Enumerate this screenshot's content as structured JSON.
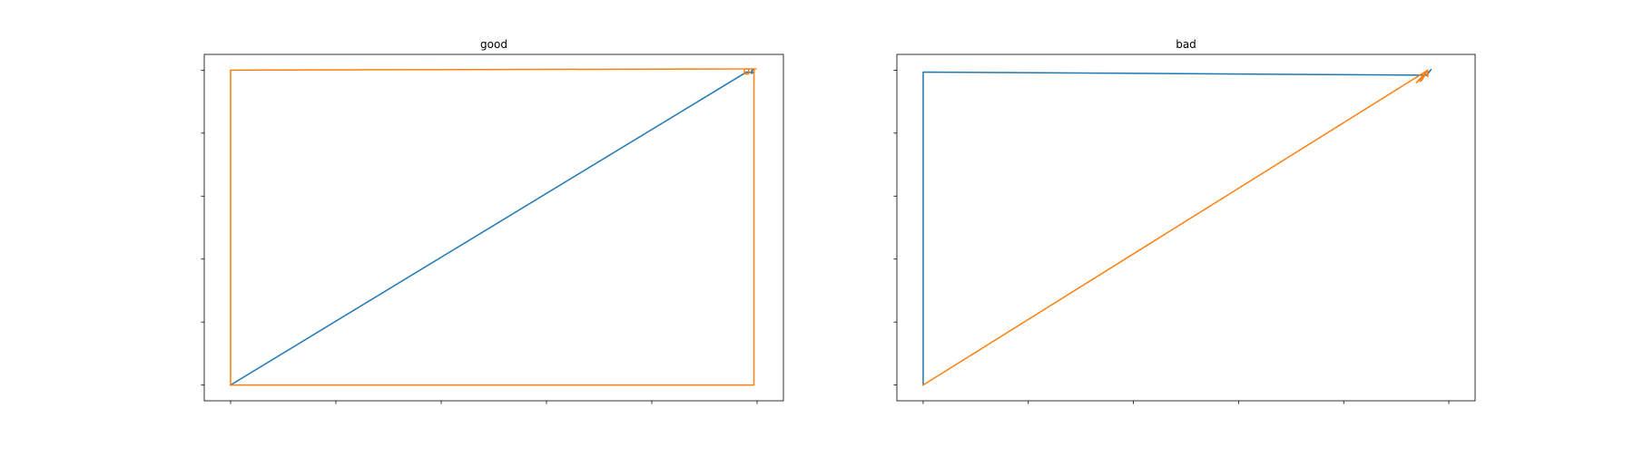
{
  "chart_data": [
    {
      "type": "line",
      "title": "good",
      "xlabel": "",
      "ylabel": "",
      "xlim": [
        -0.25,
        5.25
      ],
      "ylim": [
        -0.25,
        5.25
      ],
      "xticks": [
        0,
        1,
        2,
        3,
        4,
        5
      ],
      "yticks": [
        0,
        1,
        2,
        3,
        4,
        5
      ],
      "tick_labels_visible": false,
      "grid": false,
      "series": [
        {
          "color": "#1f77b4",
          "x": [
            0,
            4.9,
            4.97,
            4.97,
            4.95,
            4.95
          ],
          "y": [
            0,
            4.97,
            4.96,
            5.0,
            5.0,
            4.95
          ]
        },
        {
          "color": "#ff7f0e",
          "x": [
            0,
            4.97,
            4.97,
            4.92,
            4.92,
            4.88,
            4.88,
            4.99,
            4.95,
            0,
            0
          ],
          "y": [
            0,
            0,
            5.02,
            5.02,
            4.94,
            4.94,
            5.02,
            5.02,
            5.02,
            5.0,
            0
          ]
        }
      ]
    },
    {
      "type": "line",
      "title": "bad",
      "xlabel": "",
      "ylabel": "",
      "xlim": [
        -0.25,
        5.25
      ],
      "ylim": [
        -0.25,
        5.25
      ],
      "xticks": [
        0,
        1,
        2,
        3,
        4,
        5
      ],
      "yticks": [
        0,
        1,
        2,
        3,
        4,
        5
      ],
      "tick_labels_visible": false,
      "grid": false,
      "series": [
        {
          "color": "#1f77b4",
          "x": [
            0,
            0,
            4.79,
            4.8,
            4.83,
            4.79
          ],
          "y": [
            0,
            4.97,
            4.92,
            4.94,
            5.01,
            4.92
          ]
        },
        {
          "color": "#ff7f0e",
          "x": [
            0,
            4.8,
            4.69,
            4.72,
            4.76,
            4.8,
            4.73,
            4.75,
            4.8,
            4.8
          ],
          "y": [
            0,
            5.0,
            4.8,
            4.84,
            4.92,
            5.0,
            4.82,
            4.86,
            5.0,
            4.9
          ]
        }
      ]
    }
  ]
}
